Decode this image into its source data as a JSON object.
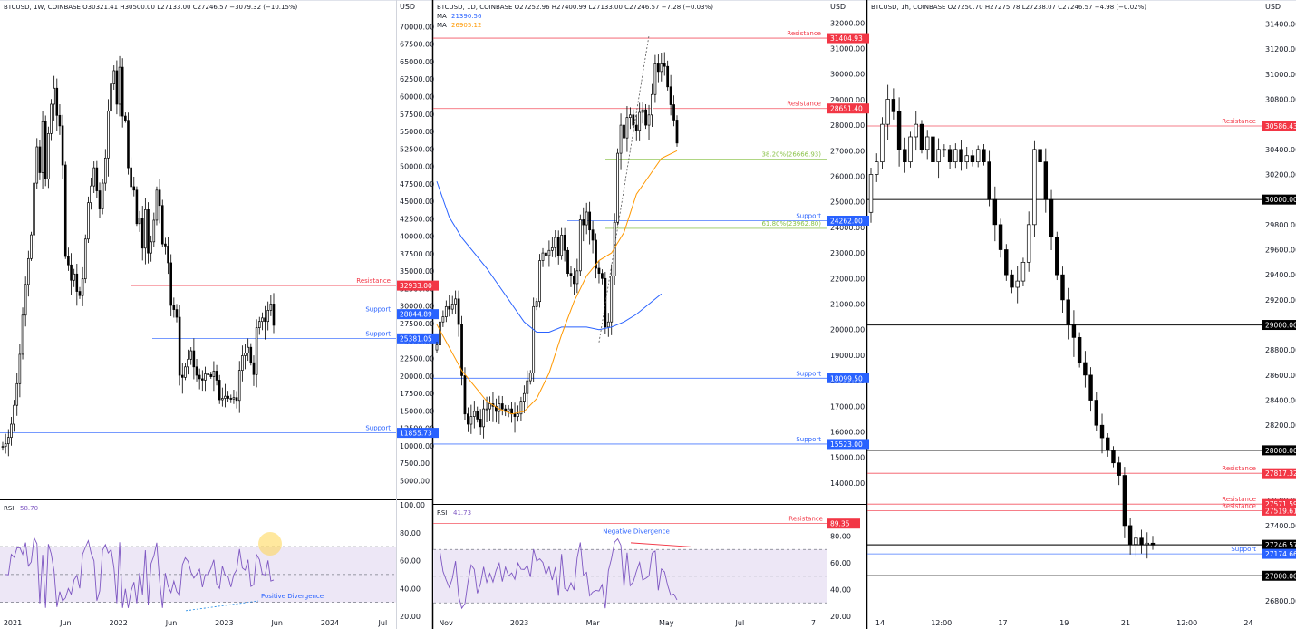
{
  "colors": {
    "background": "#ffffff",
    "candle": "#000000",
    "resistance": "#f23645",
    "support": "#2962ff",
    "fib": "#8bc34a",
    "ma_blue": "#2962ff",
    "ma_orange": "#ff9800",
    "rsi_line": "#7e57c2",
    "rsi_band": "#ede7f6",
    "highlight": "#ffd54f",
    "axis_text": "#131722",
    "divider": "#000000"
  },
  "chart_data": [
    {
      "type": "candlestick",
      "title": "BTCUSD, 1W, COINBASE",
      "ohlc_label": "O30321.41  H30500.00  L27133.00  C27246.57  −3079.32 (−10.15%)",
      "axis_label": "USD",
      "y_ticks": [
        "70000.00",
        "67500.00",
        "65000.00",
        "62500.00",
        "60000.00",
        "57500.00",
        "55000.00",
        "52500.00",
        "50000.00",
        "47500.00",
        "45000.00",
        "42500.00",
        "40000.00",
        "37500.00",
        "35000.00",
        "32500.00",
        "30000.00",
        "27500.00",
        "25000.00",
        "22500.00",
        "20000.00",
        "17500.00",
        "15000.00",
        "12500.00",
        "10000.00",
        "7500.00",
        "5000.00"
      ],
      "ylim": [
        3500,
        72000
      ],
      "x_ticks": [
        "2021",
        "Jun",
        "2022",
        "Jun",
        "2023",
        "Jun",
        "2024",
        "Jul"
      ],
      "levels": [
        {
          "name": "Resistance",
          "value": 32933.0,
          "label": "32933.00",
          "color": "resistance"
        },
        {
          "name": "Support",
          "value": 28844.89,
          "label": "28844.89",
          "color": "support"
        },
        {
          "name": "Support",
          "value": 25381.05,
          "label": "25381.05",
          "color": "support"
        },
        {
          "name": "Support",
          "value": 11855.73,
          "label": "11855.73",
          "color": "support"
        }
      ],
      "close_series": [
        9900,
        10300,
        11200,
        13100,
        15800,
        18900,
        23100,
        28700,
        33100,
        36800,
        40200,
        47600,
        52800,
        49100,
        56400,
        48200,
        54700,
        58900,
        61200,
        57300,
        55800,
        50200,
        37100,
        35900,
        33700,
        34600,
        32100,
        31500,
        33900,
        39600,
        44800,
        47200,
        49800,
        46500,
        43900,
        47600,
        51200,
        57900,
        61800,
        63700,
        58900,
        64200,
        57200,
        56600,
        49800,
        47100,
        46600,
        41800,
        42600,
        38300,
        43800,
        37600,
        39200,
        42300,
        46600,
        44400,
        38900,
        38600,
        36200,
        30100,
        29500,
        28400,
        20100,
        19800,
        21300,
        22400,
        23600,
        21300,
        20100,
        19600,
        19400,
        20300,
        20200,
        19900,
        20700,
        19400,
        16600,
        16800,
        17100,
        16800,
        16700,
        16900,
        16500,
        20800,
        22900,
        23300,
        24100,
        21900,
        20200,
        26900,
        27800,
        28300,
        27800,
        29400,
        30300,
        27246
      ],
      "rsi": {
        "label": "RSI",
        "value_label": "58.70",
        "y_ticks": [
          "100.00",
          "80.00",
          "60.00",
          "40.00",
          "20.00"
        ],
        "ylim": [
          20,
          100
        ],
        "bands": [
          70,
          50,
          30
        ],
        "annotations": [
          "Positive Divergence"
        ]
      }
    },
    {
      "type": "candlestick",
      "title": "BTCUSD, 1D, COINBASE",
      "ohlc_label": "O27252.96  H27400.99  L27133.00  C27246.57  −7.28 (−0.03%)",
      "axis_label": "USD",
      "indicators": [
        {
          "name": "MA",
          "value": "21390.56",
          "color": "ma_blue"
        },
        {
          "name": "MA",
          "value": "26905.12",
          "color": "ma_orange"
        }
      ],
      "y_ticks": [
        "32000.00",
        "31000.00",
        "30000.00",
        "29000.00",
        "28000.00",
        "27000.00",
        "26000.00",
        "25000.00",
        "24000.00",
        "23000.00",
        "22000.00",
        "21000.00",
        "20000.00",
        "19000.00",
        "18000.00",
        "17000.00",
        "16000.00",
        "15000.00",
        "14000.00"
      ],
      "ylim": [
        13500,
        32400
      ],
      "x_ticks": [
        "Nov",
        "2023",
        "Mar",
        "May",
        "Jul",
        "7"
      ],
      "levels": [
        {
          "name": "Resistance",
          "value": 31404.93,
          "label": "31404.93",
          "color": "resistance"
        },
        {
          "name": "Resistance",
          "value": 28651.4,
          "label": "28651.40",
          "color": "resistance"
        },
        {
          "name": "38.20%(26666.93)",
          "value": 26666.93,
          "label": "",
          "color": "fib"
        },
        {
          "name": "Support",
          "value": 24262.0,
          "label": "24262.00",
          "color": "support"
        },
        {
          "name": "61.80%(23962.80)",
          "value": 23962.8,
          "label": "",
          "color": "fib"
        },
        {
          "name": "Support",
          "value": 18099.5,
          "label": "18099.50",
          "color": "support"
        },
        {
          "name": "Support",
          "value": 15523.0,
          "label": "15523.00",
          "color": "support"
        }
      ],
      "close_series": [
        19400,
        20300,
        20500,
        20900,
        20800,
        21000,
        21200,
        20200,
        18200,
        16700,
        16300,
        16600,
        16800,
        16500,
        16200,
        16900,
        16900,
        17100,
        17000,
        16800,
        17100,
        16900,
        16800,
        16900,
        16700,
        16600,
        16700,
        17200,
        17500,
        18000,
        18300,
        20900,
        21100,
        22700,
        23000,
        22900,
        23100,
        23200,
        23600,
        22900,
        23700,
        23100,
        22200,
        22100,
        21800,
        22300,
        24300,
        24100,
        24600,
        23900,
        23500,
        22400,
        22200,
        22000,
        20100,
        20300,
        22100,
        24200,
        26900,
        28000,
        27500,
        28300,
        28400,
        28000,
        27800,
        28500,
        28600,
        28000,
        28400,
        29200,
        30400,
        30100,
        30400,
        30300,
        29500,
        28800,
        28200,
        27300
      ],
      "ma_blue_points": [
        [
          0,
          25800
        ],
        [
          4,
          24400
        ],
        [
          8,
          23600
        ],
        [
          12,
          23000
        ],
        [
          16,
          22400
        ],
        [
          20,
          21700
        ],
        [
          24,
          21000
        ],
        [
          28,
          20300
        ],
        [
          32,
          19900
        ],
        [
          36,
          19900
        ],
        [
          40,
          20100
        ],
        [
          44,
          20100
        ],
        [
          48,
          20100
        ],
        [
          52,
          20000
        ],
        [
          56,
          20100
        ],
        [
          60,
          20300
        ],
        [
          64,
          20600
        ],
        [
          68,
          21000
        ],
        [
          72,
          21400
        ]
      ],
      "ma_orange_points": [
        [
          0,
          20200
        ],
        [
          4,
          19300
        ],
        [
          8,
          18400
        ],
        [
          12,
          17800
        ],
        [
          16,
          17200
        ],
        [
          20,
          16900
        ],
        [
          24,
          16700
        ],
        [
          28,
          16800
        ],
        [
          32,
          17300
        ],
        [
          36,
          18300
        ],
        [
          40,
          19800
        ],
        [
          44,
          21100
        ],
        [
          48,
          22100
        ],
        [
          52,
          22700
        ],
        [
          56,
          23000
        ],
        [
          60,
          23800
        ],
        [
          64,
          25300
        ],
        [
          68,
          26000
        ],
        [
          72,
          26700
        ],
        [
          77,
          27000
        ]
      ],
      "rsi": {
        "label": "RSI",
        "value_label": "41.73",
        "y_ticks": [
          "80.00",
          "60.00",
          "40.00",
          "20.00"
        ],
        "ylim": [
          20,
          100
        ],
        "bands": [
          70,
          50,
          30
        ],
        "level": {
          "name": "Resistance",
          "value": 89.35,
          "label": "89.35"
        },
        "annotations": [
          "Negative Divergence"
        ]
      }
    },
    {
      "type": "candlestick",
      "title": "BTCUSD, 1h, COINBASE",
      "ohlc_label": "O27250.70  H27275.78  L27238.07  C27246.57  −4.98 (−0.02%)",
      "axis_label": "USD",
      "y_ticks": [
        "31400.00",
        "31200.00",
        "31000.00",
        "30800.00",
        "30600.00",
        "30400.00",
        "30200.00",
        "30000.00",
        "29800.00",
        "29600.00",
        "29400.00",
        "29200.00",
        "29000.00",
        "28800.00",
        "28600.00",
        "28400.00",
        "28200.00",
        "28000.00",
        "27800.00",
        "27600.00",
        "27400.00",
        "27200.00",
        "27000.00",
        "26800.00"
      ],
      "ylim": [
        26720,
        31490
      ],
      "x_ticks": [
        "14",
        "12:00",
        "17",
        "19",
        "21",
        "12:00",
        "24"
      ],
      "levels": [
        {
          "name": "Resistance",
          "value": 30586.43,
          "label": "30586.43",
          "color": "resistance"
        },
        {
          "name": "",
          "value": 30000.0,
          "label": "30000.00",
          "color": "black"
        },
        {
          "name": "",
          "value": 29000.0,
          "label": "29000.00",
          "color": "black"
        },
        {
          "name": "",
          "value": 28000.0,
          "label": "28000.00",
          "color": "black"
        },
        {
          "name": "Resistance",
          "value": 27817.32,
          "label": "27817.32",
          "color": "resistance"
        },
        {
          "name": "Resistance",
          "value": 27571.59,
          "label": "27571.59",
          "color": "resistance"
        },
        {
          "name": "Resistance",
          "value": 27519.61,
          "label": "27519.61",
          "color": "resistance"
        },
        {
          "name": "",
          "value": 27246.57,
          "label": "27246.57",
          "color": "black"
        },
        {
          "name": "Support",
          "value": 27174.66,
          "label": "27174.66",
          "color": "support"
        },
        {
          "name": "",
          "value": 27000.0,
          "label": "27000.00",
          "color": "black"
        }
      ],
      "close_series": [
        30200,
        30300,
        30600,
        30800,
        30700,
        30400,
        30300,
        30500,
        30600,
        30400,
        30500,
        30300,
        30400,
        30400,
        30300,
        30400,
        30300,
        30350,
        30300,
        30400,
        30300,
        30000,
        29800,
        29600,
        29400,
        29300,
        29350,
        29500,
        29800,
        30400,
        30300,
        30000,
        29700,
        29400,
        29200,
        29000,
        28900,
        28700,
        28600,
        28400,
        28200,
        28100,
        28000,
        27900,
        27800,
        27400,
        27250,
        27300,
        27250,
        27260,
        27246
      ]
    }
  ]
}
